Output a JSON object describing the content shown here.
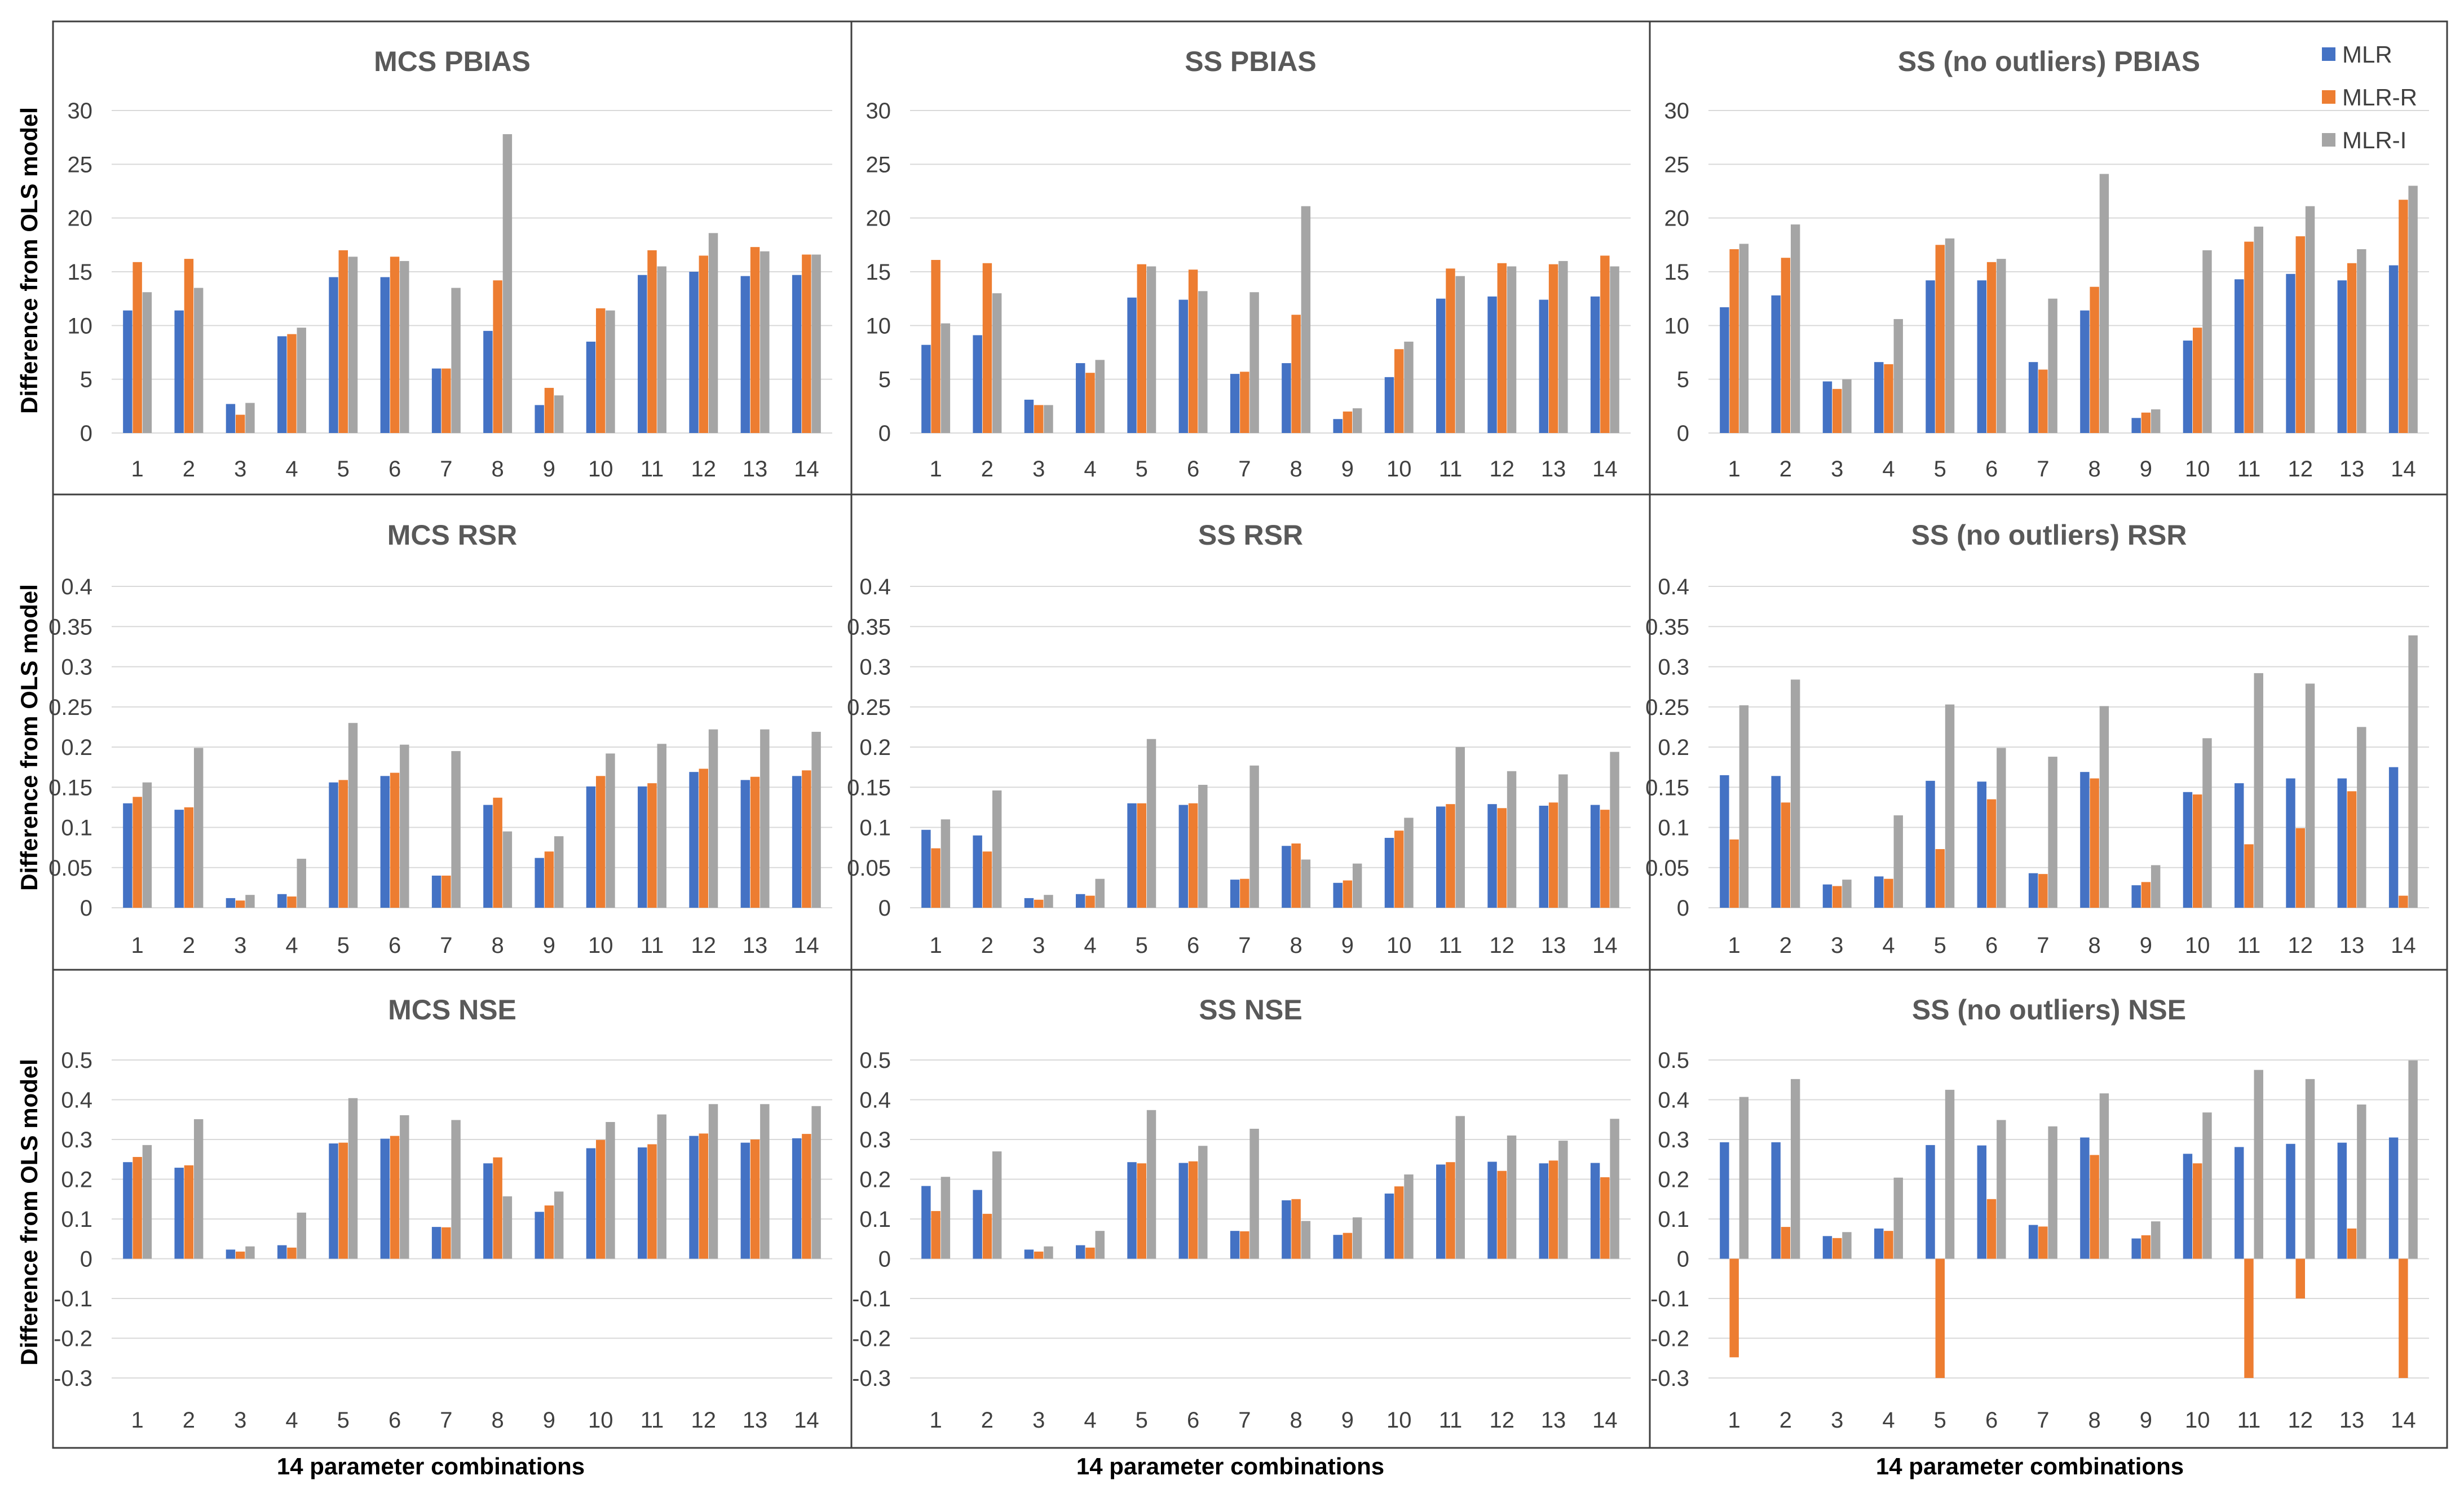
{
  "figure": {
    "ylabel": "Difference from OLS model",
    "xlabel": "14 parameter combinations",
    "legend": [
      {
        "name": "MLR",
        "color": "#4472C4"
      },
      {
        "name": "MLR-R",
        "color": "#ED7D31"
      },
      {
        "name": "MLR-I",
        "color": "#A5A5A5"
      }
    ],
    "legend_position": "top-right"
  },
  "chart_data": [
    {
      "type": "bar",
      "title": "MCS PBIAS",
      "ylim": [
        0,
        30
      ],
      "yticks": [
        "0",
        "5",
        "10",
        "15",
        "20",
        "25",
        "30"
      ],
      "yticks_values": [
        0,
        5,
        10,
        15,
        20,
        25,
        30
      ],
      "categories": [
        "1",
        "2",
        "3",
        "4",
        "5",
        "6",
        "7",
        "8",
        "9",
        "10",
        "11",
        "12",
        "13",
        "14"
      ],
      "series": [
        {
          "name": "MLR",
          "values": [
            11.4,
            11.4,
            2.7,
            9.0,
            14.5,
            14.5,
            6.0,
            9.5,
            2.6,
            8.5,
            14.7,
            15.0,
            14.6,
            14.7
          ]
        },
        {
          "name": "MLR-R",
          "values": [
            15.9,
            16.2,
            1.7,
            9.2,
            17.0,
            16.4,
            6.0,
            14.2,
            4.2,
            11.6,
            17.0,
            16.5,
            17.3,
            16.6
          ]
        },
        {
          "name": "MLR-I",
          "values": [
            13.1,
            13.5,
            2.8,
            9.8,
            16.4,
            16.0,
            13.5,
            27.8,
            3.5,
            11.4,
            15.5,
            18.6,
            16.9,
            16.6
          ]
        }
      ]
    },
    {
      "type": "bar",
      "title": "SS PBIAS",
      "ylim": [
        0,
        30
      ],
      "yticks": [
        "0",
        "5",
        "10",
        "15",
        "20",
        "25",
        "30"
      ],
      "yticks_values": [
        0,
        5,
        10,
        15,
        20,
        25,
        30
      ],
      "categories": [
        "1",
        "2",
        "3",
        "4",
        "5",
        "6",
        "7",
        "8",
        "9",
        "10",
        "11",
        "12",
        "13",
        "14"
      ],
      "series": [
        {
          "name": "MLR",
          "values": [
            8.2,
            9.1,
            3.1,
            6.5,
            12.6,
            12.4,
            5.5,
            6.5,
            1.3,
            5.2,
            12.5,
            12.7,
            12.4,
            12.7
          ]
        },
        {
          "name": "MLR-R",
          "values": [
            16.1,
            15.8,
            2.6,
            5.6,
            15.7,
            15.2,
            5.7,
            11.0,
            2.0,
            7.8,
            15.3,
            15.8,
            15.7,
            16.5
          ]
        },
        {
          "name": "MLR-I",
          "values": [
            10.2,
            13.0,
            2.6,
            6.8,
            15.5,
            13.2,
            13.1,
            21.1,
            2.3,
            8.5,
            14.6,
            15.5,
            16.0,
            15.5
          ]
        }
      ]
    },
    {
      "type": "bar",
      "title": "SS (no outliers) PBIAS",
      "ylim": [
        0,
        30
      ],
      "yticks": [
        "0",
        "5",
        "10",
        "15",
        "20",
        "25",
        "30"
      ],
      "yticks_values": [
        0,
        5,
        10,
        15,
        20,
        25,
        30
      ],
      "categories": [
        "1",
        "2",
        "3",
        "4",
        "5",
        "6",
        "7",
        "8",
        "9",
        "10",
        "11",
        "12",
        "13",
        "14"
      ],
      "series": [
        {
          "name": "MLR",
          "values": [
            11.7,
            12.8,
            4.8,
            6.6,
            14.2,
            14.2,
            6.6,
            11.4,
            1.4,
            8.6,
            14.3,
            14.8,
            14.2,
            15.6
          ]
        },
        {
          "name": "MLR-R",
          "values": [
            17.1,
            16.3,
            4.1,
            6.4,
            17.5,
            15.9,
            5.9,
            13.6,
            1.9,
            9.8,
            17.8,
            18.3,
            15.8,
            21.7
          ]
        },
        {
          "name": "MLR-I",
          "values": [
            17.6,
            19.4,
            5.0,
            10.6,
            18.1,
            16.2,
            12.5,
            24.1,
            2.2,
            17.0,
            19.2,
            21.1,
            17.1,
            23.0
          ]
        }
      ]
    },
    {
      "type": "bar",
      "title": "MCS RSR",
      "ylim": [
        0,
        0.4
      ],
      "yticks": [
        "0",
        "0.05",
        "0.1",
        "0.15",
        "0.2",
        "0.25",
        "0.3",
        "0.35",
        "0.4"
      ],
      "yticks_values": [
        0,
        0.05,
        0.1,
        0.15,
        0.2,
        0.25,
        0.3,
        0.35,
        0.4
      ],
      "categories": [
        "1",
        "2",
        "3",
        "4",
        "5",
        "6",
        "7",
        "8",
        "9",
        "10",
        "11",
        "12",
        "13",
        "14"
      ],
      "series": [
        {
          "name": "MLR",
          "values": [
            0.13,
            0.122,
            0.012,
            0.017,
            0.156,
            0.164,
            0.04,
            0.128,
            0.062,
            0.151,
            0.151,
            0.169,
            0.159,
            0.164
          ]
        },
        {
          "name": "MLR-R",
          "values": [
            0.138,
            0.125,
            0.009,
            0.014,
            0.159,
            0.168,
            0.04,
            0.137,
            0.07,
            0.164,
            0.155,
            0.173,
            0.163,
            0.171
          ]
        },
        {
          "name": "MLR-I",
          "values": [
            0.156,
            0.199,
            0.016,
            0.061,
            0.23,
            0.203,
            0.195,
            0.095,
            0.089,
            0.192,
            0.204,
            0.222,
            0.222,
            0.219
          ]
        }
      ]
    },
    {
      "type": "bar",
      "title": "SS RSR",
      "ylim": [
        0,
        0.4
      ],
      "yticks": [
        "0",
        "0.05",
        "0.1",
        "0.15",
        "0.2",
        "0.25",
        "0.3",
        "0.35",
        "0.4"
      ],
      "yticks_values": [
        0,
        0.05,
        0.1,
        0.15,
        0.2,
        0.25,
        0.3,
        0.35,
        0.4
      ],
      "categories": [
        "1",
        "2",
        "3",
        "4",
        "5",
        "6",
        "7",
        "8",
        "9",
        "10",
        "11",
        "12",
        "13",
        "14"
      ],
      "series": [
        {
          "name": "MLR",
          "values": [
            0.097,
            0.09,
            0.012,
            0.017,
            0.13,
            0.128,
            0.035,
            0.077,
            0.031,
            0.087,
            0.126,
            0.129,
            0.127,
            0.128
          ]
        },
        {
          "name": "MLR-R",
          "values": [
            0.074,
            0.07,
            0.01,
            0.015,
            0.13,
            0.13,
            0.036,
            0.08,
            0.034,
            0.096,
            0.129,
            0.124,
            0.131,
            0.122
          ]
        },
        {
          "name": "MLR-I",
          "values": [
            0.11,
            0.146,
            0.016,
            0.036,
            0.21,
            0.153,
            0.177,
            0.06,
            0.055,
            0.112,
            0.2,
            0.17,
            0.166,
            0.194
          ]
        }
      ]
    },
    {
      "type": "bar",
      "title": "SS (no outliers) RSR",
      "ylim": [
        0,
        0.4
      ],
      "yticks": [
        "0",
        "0.05",
        "0.1",
        "0.15",
        "0.2",
        "0.25",
        "0.3",
        "0.35",
        "0.4"
      ],
      "yticks_values": [
        0,
        0.05,
        0.1,
        0.15,
        0.2,
        0.25,
        0.3,
        0.35,
        0.4
      ],
      "categories": [
        "1",
        "2",
        "3",
        "4",
        "5",
        "6",
        "7",
        "8",
        "9",
        "10",
        "11",
        "12",
        "13",
        "14"
      ],
      "series": [
        {
          "name": "MLR",
          "values": [
            0.165,
            0.164,
            0.029,
            0.039,
            0.158,
            0.157,
            0.043,
            0.169,
            0.028,
            0.144,
            0.155,
            0.161,
            0.161,
            0.175
          ]
        },
        {
          "name": "MLR-R",
          "values": [
            0.085,
            0.131,
            0.027,
            0.036,
            0.073,
            0.135,
            0.042,
            0.161,
            0.032,
            0.141,
            0.079,
            0.099,
            0.145,
            0.015
          ]
        },
        {
          "name": "MLR-I",
          "values": [
            0.252,
            0.284,
            0.035,
            0.115,
            0.253,
            0.199,
            0.188,
            0.251,
            0.053,
            0.211,
            0.292,
            0.279,
            0.225,
            0.339
          ]
        }
      ]
    },
    {
      "type": "bar",
      "title": "MCS NSE",
      "ylim": [
        -0.3,
        0.5
      ],
      "yticks": [
        "-0.3",
        "-0.2",
        "-0.1",
        "0",
        "0.1",
        "0.2",
        "0.3",
        "0.4",
        "0.5"
      ],
      "yticks_values": [
        -0.3,
        -0.2,
        -0.1,
        0,
        0.1,
        0.2,
        0.3,
        0.4,
        0.5
      ],
      "categories": [
        "1",
        "2",
        "3",
        "4",
        "5",
        "6",
        "7",
        "8",
        "9",
        "10",
        "11",
        "12",
        "13",
        "14"
      ],
      "series": [
        {
          "name": "MLR",
          "values": [
            0.243,
            0.229,
            0.023,
            0.034,
            0.29,
            0.302,
            0.08,
            0.24,
            0.118,
            0.278,
            0.28,
            0.309,
            0.292,
            0.303
          ]
        },
        {
          "name": "MLR-R",
          "values": [
            0.256,
            0.235,
            0.018,
            0.028,
            0.292,
            0.309,
            0.079,
            0.255,
            0.134,
            0.299,
            0.288,
            0.315,
            0.3,
            0.314
          ]
        },
        {
          "name": "MLR-I",
          "values": [
            0.286,
            0.351,
            0.031,
            0.116,
            0.404,
            0.361,
            0.349,
            0.157,
            0.169,
            0.344,
            0.363,
            0.389,
            0.389,
            0.384
          ]
        }
      ]
    },
    {
      "type": "bar",
      "title": "SS NSE",
      "ylim": [
        -0.3,
        0.5
      ],
      "yticks": [
        "-0.3",
        "-0.2",
        "-0.1",
        "0",
        "0.1",
        "0.2",
        "0.3",
        "0.4",
        "0.5"
      ],
      "yticks_values": [
        -0.3,
        -0.2,
        -0.1,
        0,
        0.1,
        0.2,
        0.3,
        0.4,
        0.5
      ],
      "categories": [
        "1",
        "2",
        "3",
        "4",
        "5",
        "6",
        "7",
        "8",
        "9",
        "10",
        "11",
        "12",
        "13",
        "14"
      ],
      "series": [
        {
          "name": "MLR",
          "values": [
            0.183,
            0.173,
            0.023,
            0.034,
            0.243,
            0.241,
            0.07,
            0.147,
            0.06,
            0.164,
            0.237,
            0.244,
            0.24,
            0.241
          ]
        },
        {
          "name": "MLR-R",
          "values": [
            0.12,
            0.113,
            0.018,
            0.028,
            0.24,
            0.245,
            0.069,
            0.15,
            0.065,
            0.182,
            0.243,
            0.221,
            0.247,
            0.205
          ]
        },
        {
          "name": "MLR-I",
          "values": [
            0.206,
            0.27,
            0.031,
            0.07,
            0.374,
            0.284,
            0.327,
            0.095,
            0.104,
            0.212,
            0.359,
            0.31,
            0.297,
            0.352
          ]
        }
      ]
    },
    {
      "type": "bar",
      "title": "SS (no outliers) NSE",
      "ylim": [
        -0.3,
        0.5
      ],
      "yticks": [
        "-0.3",
        "-0.2",
        "-0.1",
        "0",
        "0.1",
        "0.2",
        "0.3",
        "0.4",
        "0.5"
      ],
      "yticks_values": [
        -0.3,
        -0.2,
        -0.1,
        0,
        0.1,
        0.2,
        0.3,
        0.4,
        0.5
      ],
      "categories": [
        "1",
        "2",
        "3",
        "4",
        "5",
        "6",
        "7",
        "8",
        "9",
        "10",
        "11",
        "12",
        "13",
        "14"
      ],
      "series": [
        {
          "name": "MLR",
          "values": [
            0.293,
            0.293,
            0.057,
            0.076,
            0.286,
            0.285,
            0.085,
            0.305,
            0.051,
            0.264,
            0.281,
            0.289,
            0.292,
            0.305
          ]
        },
        {
          "name": "MLR-R",
          "values": [
            -0.248,
            0.08,
            0.052,
            0.07,
            -0.3,
            0.15,
            0.081,
            0.261,
            0.059,
            0.24,
            -0.3,
            -0.1,
            0.076,
            -0.3
          ]
        },
        {
          "name": "MLR-I",
          "values": [
            0.407,
            0.452,
            0.067,
            0.204,
            0.425,
            0.349,
            0.333,
            0.416,
            0.094,
            0.368,
            0.475,
            0.452,
            0.388,
            0.499
          ]
        }
      ]
    }
  ]
}
